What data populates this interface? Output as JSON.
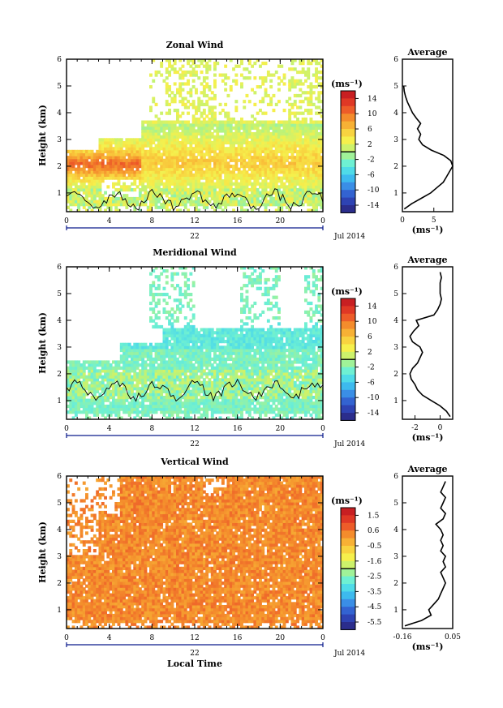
{
  "x_axis": {
    "ticks": [
      "0",
      "4",
      "8",
      "12",
      "16",
      "20",
      "0"
    ],
    "day_label": "22",
    "month_label": "Jul 2014",
    "xlabel": "Local Time"
  },
  "y_axis": {
    "ticks": [
      "1",
      "2",
      "3",
      "4",
      "5",
      "6"
    ],
    "ylabel": "Height (km)"
  },
  "cbar_unit_label": "(ms⁻¹)",
  "avg_unit_label": "(ms⁻¹)",
  "avg_title": "Average",
  "colors": {
    "scale": [
      "#2b2d8c",
      "#2f4ec7",
      "#3a8ee6",
      "#3fd0f2",
      "#6ef0d3",
      "#b9f37a",
      "#f6f04c",
      "#f9c43a",
      "#f48c2c",
      "#ea4427",
      "#c81f22"
    ]
  },
  "chart_data": [
    {
      "type": "heatmap",
      "title": "Zonal Wind",
      "xlabel": "",
      "ylabel": "Height (km)",
      "xlim": [
        0,
        24
      ],
      "ylim": [
        0.3,
        6
      ],
      "colorbar": {
        "labels": [
          "14",
          "10",
          "6",
          "2",
          "-2",
          "-6",
          "-10",
          "-14"
        ],
        "range": [
          -16,
          16
        ]
      },
      "profile": {
        "title": "Average",
        "xlabel": "(ms⁻¹)",
        "xlim": [
          0,
          8
        ],
        "xticks": [
          "0",
          "5"
        ],
        "heights": [
          0.4,
          0.6,
          0.8,
          1.0,
          1.2,
          1.4,
          1.6,
          1.8,
          2.0,
          2.2,
          2.4,
          2.6,
          2.8,
          3.0,
          3.2,
          3.4,
          3.6,
          3.8,
          4.0,
          4.2,
          4.4,
          4.6,
          4.8,
          5.0
        ],
        "values": [
          0.3,
          1.5,
          3.0,
          4.5,
          5.5,
          6.5,
          7.0,
          7.5,
          8.0,
          7.7,
          6.6,
          4.6,
          3.2,
          2.6,
          2.9,
          2.4,
          2.9,
          2.2,
          1.6,
          1.2,
          0.8,
          0.5,
          0.3,
          0.2
        ]
      }
    },
    {
      "type": "heatmap",
      "title": "Meridional Wind",
      "xlabel": "",
      "ylabel": "Height (km)",
      "xlim": [
        0,
        24
      ],
      "ylim": [
        0.3,
        6
      ],
      "colorbar": {
        "labels": [
          "14",
          "10",
          "6",
          "2",
          "-2",
          "-6",
          "-10",
          "-14"
        ],
        "range": [
          -16,
          16
        ]
      },
      "profile": {
        "title": "Average",
        "xlabel": "(ms⁻¹)",
        "xlim": [
          -3,
          1
        ],
        "xticks": [
          "-2",
          "0"
        ],
        "heights": [
          0.4,
          0.6,
          0.8,
          1.0,
          1.2,
          1.4,
          1.6,
          1.8,
          2.0,
          2.2,
          2.4,
          2.6,
          2.8,
          3.0,
          3.2,
          3.4,
          3.6,
          3.8,
          4.0,
          4.2,
          4.4,
          4.6,
          4.8,
          5.0,
          5.2,
          5.4,
          5.6,
          5.8
        ],
        "values": [
          0.8,
          0.5,
          0.0,
          -0.7,
          -1.4,
          -1.8,
          -2.0,
          -2.3,
          -2.4,
          -2.2,
          -1.8,
          -1.6,
          -1.4,
          -1.6,
          -2.2,
          -2.4,
          -2.1,
          -1.7,
          -1.9,
          -0.5,
          -0.2,
          0.0,
          0.1,
          0.0,
          0.0,
          0.0,
          0.1,
          0.0
        ]
      }
    },
    {
      "type": "heatmap",
      "title": "Vertical Wind",
      "xlabel": "Local Time",
      "ylabel": "Height (km)",
      "xlim": [
        0,
        24
      ],
      "ylim": [
        0.3,
        6
      ],
      "colorbar": {
        "labels": [
          "1.5",
          "0.6",
          "-0.5",
          "-1.6",
          "-2.5",
          "-3.5",
          "-4.5",
          "-5.5"
        ],
        "range": [
          -6,
          2
        ]
      },
      "profile": {
        "title": "Average",
        "xlabel": "(ms⁻¹)",
        "xlim": [
          -0.16,
          0.05
        ],
        "xticks": [
          "-0.16",
          "0.05"
        ],
        "heights": [
          0.4,
          0.6,
          0.8,
          1.0,
          1.2,
          1.4,
          1.6,
          1.8,
          2.0,
          2.2,
          2.4,
          2.6,
          2.8,
          3.0,
          3.2,
          3.4,
          3.6,
          3.8,
          4.0,
          4.2,
          4.4,
          4.6,
          4.8,
          5.0,
          5.2,
          5.4,
          5.6,
          5.8
        ],
        "values": [
          -0.15,
          -0.08,
          -0.04,
          -0.05,
          -0.03,
          -0.01,
          0.0,
          0.01,
          0.02,
          0.01,
          0.0,
          0.02,
          0.01,
          0.02,
          0.0,
          0.01,
          0.0,
          0.01,
          0.0,
          -0.02,
          0.01,
          0.02,
          0.0,
          0.01,
          0.02,
          0.0,
          0.01,
          0.02
        ]
      }
    }
  ]
}
